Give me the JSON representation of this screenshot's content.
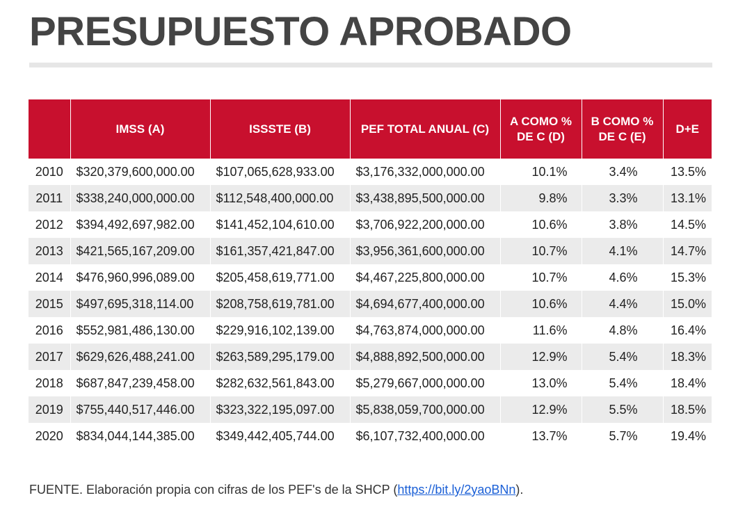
{
  "title": "PRESUPUESTO APROBADO",
  "chart_data": {
    "type": "table",
    "columns": [
      "",
      "IMSS (A)",
      "ISSSTE (B)",
      "PEF TOTAL ANUAL (C)",
      "A COMO % DE C (D)",
      "B COMO % DE C (E)",
      "D+E"
    ],
    "rows": [
      [
        "2010",
        "$320,379,600,000.00",
        "$107,065,628,933.00",
        "$3,176,332,000,000.00",
        "10.1%",
        "3.4%",
        "13.5%"
      ],
      [
        "2011",
        "$338,240,000,000.00",
        "$112,548,400,000.00",
        "$3,438,895,500,000.00",
        "9.8%",
        "3.3%",
        "13.1%"
      ],
      [
        "2012",
        "$394,492,697,982.00",
        "$141,452,104,610.00",
        "$3,706,922,200,000.00",
        "10.6%",
        "3.8%",
        "14.5%"
      ],
      [
        "2013",
        "$421,565,167,209.00",
        "$161,357,421,847.00",
        "$3,956,361,600,000.00",
        "10.7%",
        "4.1%",
        "14.7%"
      ],
      [
        "2014",
        "$476,960,996,089.00",
        "$205,458,619,771.00",
        "$4,467,225,800,000.00",
        "10.7%",
        "4.6%",
        "15.3%"
      ],
      [
        "2015",
        "$497,695,318,114.00",
        "$208,758,619,781.00",
        "$4,694,677,400,000.00",
        "10.6%",
        "4.4%",
        "15.0%"
      ],
      [
        "2016",
        "$552,981,486,130.00",
        "$229,916,102,139.00",
        "$4,763,874,000,000.00",
        "11.6%",
        "4.8%",
        "16.4%"
      ],
      [
        "2017",
        "$629,626,488,241.00",
        "$263,589,295,179.00",
        "$4,888,892,500,000.00",
        "12.9%",
        "5.4%",
        "18.3%"
      ],
      [
        "2018",
        "$687,847,239,458.00",
        "$282,632,561,843.00",
        "$5,279,667,000,000.00",
        "13.0%",
        "5.4%",
        "18.4%"
      ],
      [
        "2019",
        "$755,440,517,446.00",
        "$323,322,195,097.00",
        "$5,838,059,700,000.00",
        "12.9%",
        "5.5%",
        "18.5%"
      ],
      [
        "2020",
        "$834,044,144,385.00",
        "$349,442,405,744.00",
        "$6,107,732,400,000.00",
        "13.7%",
        "5.7%",
        "19.4%"
      ]
    ]
  },
  "source": {
    "prefix": "FUENTE. Elaboración propia con cifras de los PEF's de la SHCP (",
    "link_text": "https://bit.ly/2yaoBNn",
    "suffix": ")."
  },
  "colors": {
    "header_bg": "#c8102e",
    "title": "#444444",
    "stripe": "#ebebeb",
    "link": "#1a5fd6"
  }
}
